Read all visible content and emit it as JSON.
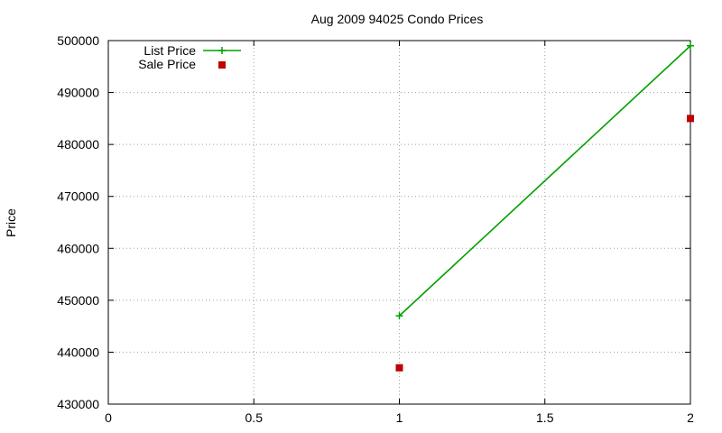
{
  "chart_data": {
    "type": "line",
    "title": "Aug 2009 94025 Condo Prices",
    "xlabel": "",
    "ylabel": "Price",
    "xlim": [
      0,
      2
    ],
    "ylim": [
      430000,
      500000
    ],
    "xticks": [
      0,
      0.5,
      1,
      1.5,
      2
    ],
    "xtick_labels": [
      "0",
      "0.5",
      "1",
      "1.5",
      "2"
    ],
    "yticks": [
      430000,
      440000,
      450000,
      460000,
      470000,
      480000,
      490000,
      500000
    ],
    "ytick_labels": [
      "430000",
      "440000",
      "450000",
      "460000",
      "470000",
      "480000",
      "490000",
      "500000"
    ],
    "grid": true,
    "legend_position": "top-left",
    "series": [
      {
        "name": "List Price",
        "style": "line-plus",
        "color": "#00a000",
        "x": [
          1,
          2
        ],
        "y": [
          447000,
          499000
        ]
      },
      {
        "name": "Sale Price",
        "style": "square-points",
        "color": "#c00000",
        "x": [
          1,
          2
        ],
        "y": [
          437000,
          485000
        ]
      }
    ]
  }
}
